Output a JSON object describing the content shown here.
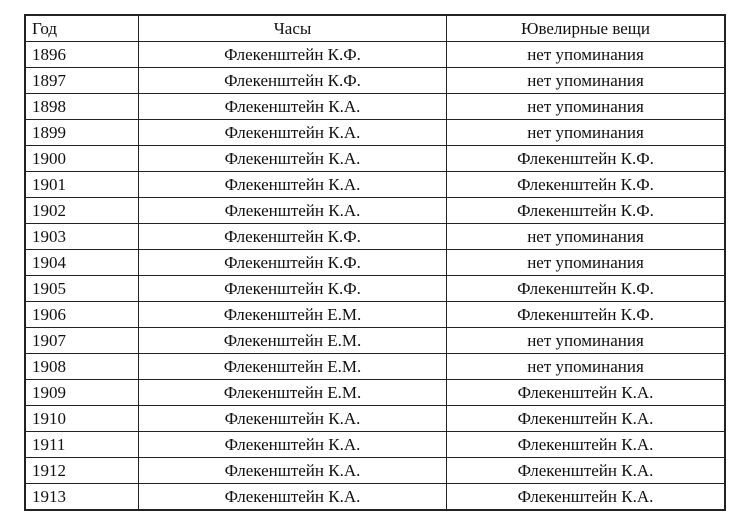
{
  "table": {
    "headers": [
      "Год",
      "Часы",
      "Ювелирные вещи"
    ],
    "rows": [
      [
        "1896",
        "Флекенштейн К.Ф.",
        "нет упоминания"
      ],
      [
        "1897",
        "Флекенштейн К.Ф.",
        "нет упоминания"
      ],
      [
        "1898",
        "Флекенштейн К.А.",
        "нет упоминания"
      ],
      [
        "1899",
        "Флекенштейн К.А.",
        "нет упоминания"
      ],
      [
        "1900",
        "Флекенштейн К.А.",
        "Флекенштейн К.Ф."
      ],
      [
        "1901",
        "Флекенштейн К.А.",
        "Флекенштейн К.Ф."
      ],
      [
        "1902",
        "Флекенштейн К.А.",
        "Флекенштейн К.Ф."
      ],
      [
        "1903",
        "Флекенштейн К.Ф.",
        "нет упоминания"
      ],
      [
        "1904",
        "Флекенштейн К.Ф.",
        "нет упоминания"
      ],
      [
        "1905",
        "Флекенштейн К.Ф.",
        "Флекенштейн К.Ф."
      ],
      [
        "1906",
        "Флекенштейн Е.М.",
        "Флекенштейн К.Ф."
      ],
      [
        "1907",
        "Флекенштейн Е.М.",
        "нет упоминания"
      ],
      [
        "1908",
        "Флекенштейн Е.М.",
        "нет упоминания"
      ],
      [
        "1909",
        "Флекенштейн Е.М.",
        "Флекенштейн К.А."
      ],
      [
        "1910",
        "Флекенштейн К.А.",
        "Флекенштейн К.А."
      ],
      [
        "1911",
        "Флекенштейн К.А.",
        "Флекенштейн К.А."
      ],
      [
        "1912",
        "Флекенштейн К.А.",
        "Флекенштейн К.А."
      ],
      [
        "1913",
        "Флекенштейн К.А.",
        "Флекенштейн К.А."
      ]
    ]
  }
}
